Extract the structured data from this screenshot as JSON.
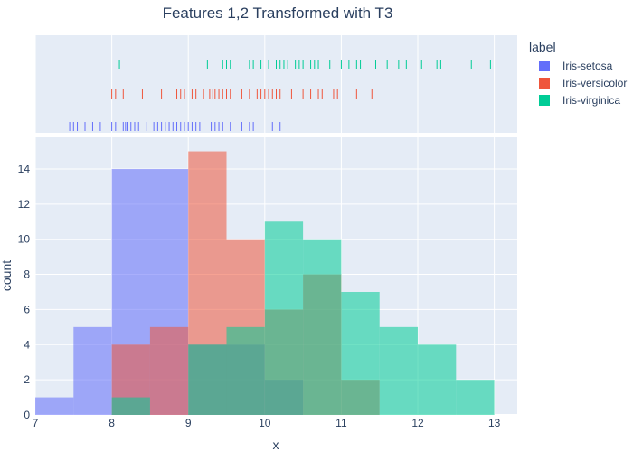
{
  "chart_data": {
    "type": "bar",
    "title": "Features 1,2 Transformed with T3",
    "xlabel": "x",
    "ylabel": "count",
    "xlim": [
      7,
      13.3
    ],
    "ylim": [
      0,
      15.8
    ],
    "x_ticks": [
      7,
      8,
      9,
      10,
      11,
      12,
      13
    ],
    "y_ticks": [
      0,
      2,
      4,
      6,
      8,
      10,
      12,
      14
    ],
    "legend": {
      "title": "label",
      "placement": "right"
    },
    "series": [
      {
        "name": "Iris-setosa",
        "color": "#636efa",
        "bins": [
          {
            "x0": 7.0,
            "x1": 7.5,
            "count": 1
          },
          {
            "x0": 7.5,
            "x1": 8.0,
            "count": 5
          },
          {
            "x0": 8.0,
            "x1": 9.0,
            "count": 14
          },
          {
            "x0": 9.0,
            "x1": 10.0,
            "count": 4
          },
          {
            "x0": 10.0,
            "x1": 10.5,
            "count": 2
          }
        ],
        "rug": [
          7.45,
          7.5,
          7.55,
          7.65,
          7.75,
          7.85,
          8.0,
          8.05,
          8.15,
          8.18,
          8.2,
          8.25,
          8.3,
          8.35,
          8.45,
          8.55,
          8.6,
          8.65,
          8.7,
          8.75,
          8.8,
          8.85,
          8.9,
          8.95,
          9.0,
          9.05,
          9.1,
          9.15,
          9.3,
          9.35,
          9.4,
          9.45,
          9.55,
          9.7,
          9.8,
          9.85,
          10.1,
          10.2
        ]
      },
      {
        "name": "Iris-versicolor",
        "color": "#ef553b",
        "bins": [
          {
            "x0": 8.0,
            "x1": 8.5,
            "count": 4
          },
          {
            "x0": 8.5,
            "x1": 9.0,
            "count": 5
          },
          {
            "x0": 9.0,
            "x1": 9.5,
            "count": 15
          },
          {
            "x0": 9.5,
            "x1": 10.0,
            "count": 10
          },
          {
            "x0": 10.0,
            "x1": 10.5,
            "count": 6
          },
          {
            "x0": 10.5,
            "x1": 11.0,
            "count": 8
          },
          {
            "x0": 11.0,
            "x1": 11.5,
            "count": 2
          }
        ],
        "rug": [
          8.0,
          8.05,
          8.15,
          8.4,
          8.65,
          8.85,
          8.9,
          8.95,
          9.05,
          9.1,
          9.2,
          9.28,
          9.32,
          9.35,
          9.4,
          9.45,
          9.5,
          9.55,
          9.7,
          9.8,
          9.9,
          9.95,
          10.0,
          10.05,
          10.1,
          10.15,
          10.2,
          10.35,
          10.5,
          10.6,
          10.7,
          10.75,
          10.9,
          10.95,
          11.2,
          11.4
        ]
      },
      {
        "name": "Iris-virginica",
        "color": "#00cc96",
        "bins": [
          {
            "x0": 8.0,
            "x1": 8.5,
            "count": 1
          },
          {
            "x0": 9.0,
            "x1": 9.5,
            "count": 4
          },
          {
            "x0": 9.5,
            "x1": 10.0,
            "count": 5
          },
          {
            "x0": 10.0,
            "x1": 10.5,
            "count": 11
          },
          {
            "x0": 10.5,
            "x1": 11.0,
            "count": 10
          },
          {
            "x0": 11.0,
            "x1": 11.5,
            "count": 7
          },
          {
            "x0": 11.5,
            "x1": 12.0,
            "count": 5
          },
          {
            "x0": 12.0,
            "x1": 12.5,
            "count": 4
          },
          {
            "x0": 12.5,
            "x1": 13.0,
            "count": 2
          }
        ],
        "rug": [
          8.1,
          9.25,
          9.45,
          9.5,
          9.55,
          9.8,
          9.85,
          9.95,
          10.05,
          10.15,
          10.2,
          10.25,
          10.3,
          10.4,
          10.45,
          10.5,
          10.6,
          10.65,
          10.7,
          10.8,
          10.85,
          11.0,
          11.1,
          11.2,
          11.25,
          11.45,
          11.6,
          11.75,
          11.85,
          12.05,
          12.25,
          12.3,
          12.7,
          12.95
        ]
      }
    ]
  }
}
